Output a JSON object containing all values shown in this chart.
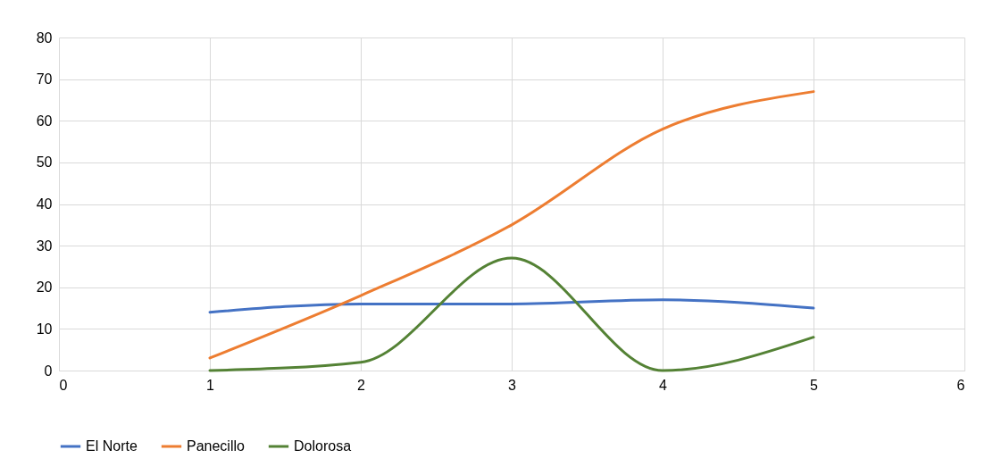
{
  "chart_data": {
    "type": "line",
    "xlim": [
      0,
      6
    ],
    "xticks": [
      0,
      1,
      2,
      3,
      4,
      5,
      6
    ],
    "ylim": [
      0,
      80
    ],
    "yticks": [
      0,
      10,
      20,
      30,
      40,
      50,
      60,
      70,
      80
    ],
    "grid": true,
    "legend": "bottom",
    "marker": "none",
    "line_style": "solid",
    "x": [
      1,
      2,
      3,
      4,
      5
    ],
    "series": [
      {
        "name": "El Norte",
        "color": "#4472c4",
        "values": [
          14,
          16,
          16,
          17,
          15
        ]
      },
      {
        "name": "Panecillo",
        "color": "#ed7d31",
        "values": [
          3,
          18,
          35,
          58,
          67
        ]
      },
      {
        "name": "Dolorosa",
        "color": "#548235",
        "values": [
          0,
          2,
          27,
          0,
          8
        ]
      }
    ]
  }
}
